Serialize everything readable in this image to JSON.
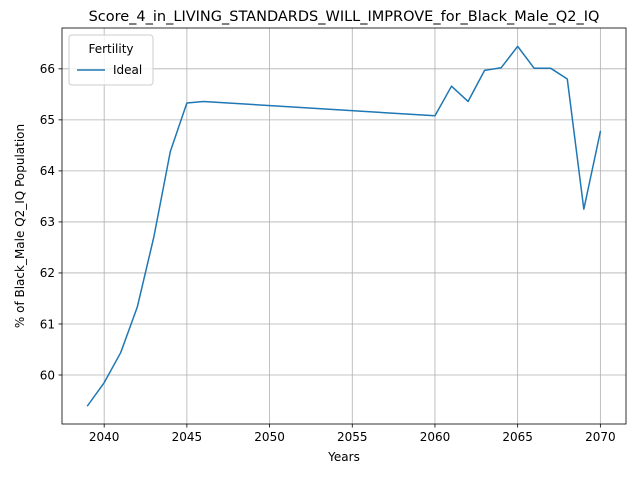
{
  "chart_data": {
    "type": "line",
    "title": "Score_4_in_LIVING_STANDARDS_WILL_IMPROVE_for_Black_Male_Q2_IQ",
    "xlabel": "Years",
    "ylabel": "% of Black_Male Q2_IQ Population",
    "xlim": [
      2037.45,
      2071.55
    ],
    "ylim": [
      59.04,
      66.8
    ],
    "x_ticks": [
      2040,
      2045,
      2050,
      2055,
      2060,
      2065,
      2070
    ],
    "y_ticks": [
      60,
      61,
      62,
      63,
      64,
      65,
      66
    ],
    "grid": true,
    "legend": {
      "title": "Fertility",
      "location": "top-left"
    },
    "series": [
      {
        "name": "Ideal",
        "color": "#1f77b4",
        "x": [
          2039,
          2040,
          2041,
          2042,
          2043,
          2044,
          2045,
          2046,
          2060,
          2061,
          2062,
          2063,
          2064,
          2065,
          2066,
          2067,
          2068,
          2069,
          2070
        ],
        "y": [
          59.4,
          59.85,
          60.44,
          61.33,
          62.7,
          64.38,
          65.33,
          65.36,
          65.08,
          65.66,
          65.36,
          65.97,
          66.02,
          66.44,
          66.01,
          66.01,
          65.8,
          63.25,
          64.77
        ]
      }
    ]
  }
}
